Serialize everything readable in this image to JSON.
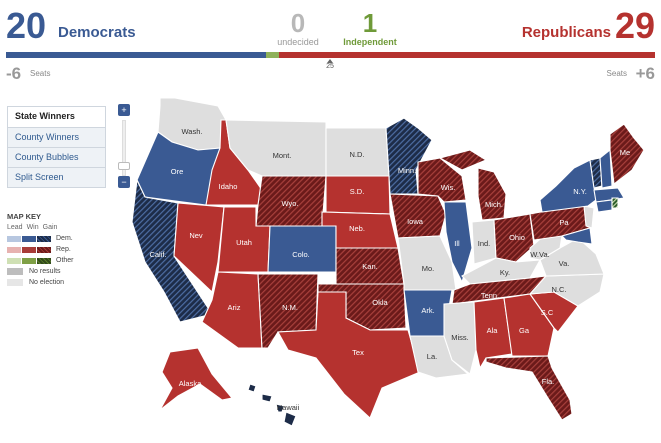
{
  "summary": {
    "democrats": {
      "count": "20",
      "label": "Democrats",
      "change": "-6",
      "seats_label": "Seats",
      "color": "#3a5a93"
    },
    "undecided": {
      "count": "0",
      "label": "undecided",
      "color": "#b8b8b8"
    },
    "independent": {
      "count": "1",
      "label": "Independent",
      "color": "#6f9a39"
    },
    "republicans": {
      "count": "29",
      "label": "Republicans",
      "change": "+6",
      "seats_label": "Seats",
      "color": "#b5322f"
    },
    "majority_marker": "25",
    "bar_fractions": {
      "democrats": 0.4,
      "independent": 0.02,
      "republicans": 0.58
    }
  },
  "views": {
    "items": [
      {
        "label": "State Winners",
        "active": true
      },
      {
        "label": "County Winners",
        "active": false
      },
      {
        "label": "County Bubbles",
        "active": false
      },
      {
        "label": "Split Screen",
        "active": false
      }
    ]
  },
  "zoom": {
    "in_icon": "zoom-in-icon",
    "out_icon": "zoom-out-icon",
    "level": 0.15
  },
  "map_key": {
    "title": "MAP KEY",
    "columns": [
      "Lead",
      "Win",
      "Gain"
    ],
    "rows": [
      {
        "label": "Dem.",
        "colors": [
          "#b7c7e0",
          "#3a5a93",
          "hatch-dem"
        ]
      },
      {
        "label": "Rep.",
        "colors": [
          "#e7b2b0",
          "#a83c38",
          "hatch-rep"
        ]
      },
      {
        "label": "Other",
        "colors": [
          "#cfe0b4",
          "#7fa046",
          "hatch-oth"
        ]
      }
    ],
    "no_results": {
      "label": "No results",
      "color": "#bdbdbd"
    },
    "no_election": {
      "label": "No election",
      "color": "#e6e6e6"
    }
  },
  "colors": {
    "dem_win": "#3a5a93",
    "dem_gain": "#1d2c48",
    "rep_win": "#b5322f",
    "rep_gain": "#6b1a1a",
    "other_gain": "#2e5e2e",
    "no_election": "#dedede"
  },
  "states": {
    "wash": "Wash.",
    "ore": "Ore",
    "calif": "Calif.",
    "idaho": "Idaho",
    "nev": "Nev",
    "mont": "Mont.",
    "wyo": "Wyo.",
    "utah": "Utah",
    "ariz": "Ariz",
    "colo": "Colo.",
    "nm": "N.M.",
    "nd": "N.D.",
    "sd": "S.D.",
    "neb": "Neb.",
    "kan": "Kan.",
    "okla": "Okla",
    "tex": "Tex",
    "minn": "Minn.",
    "iowa": "Iowa",
    "mo": "Mo.",
    "ark": "Ark.",
    "la": "La.",
    "wis": "Wis.",
    "ill": "Ill",
    "mich": "Mich.",
    "ind": "Ind.",
    "ohio": "Ohio",
    "ky": "Ky.",
    "tenn": "Tenn.",
    "miss": "Miss.",
    "ala": "Ala",
    "ga": "Ga",
    "fla": "Fla.",
    "sc": "S.C",
    "nc": "N.C.",
    "va": "Va.",
    "wva": "W.Va.",
    "pa": "Pa",
    "ny": "N.Y.",
    "me": "Me",
    "alaska": "Alaska",
    "hawaii": "Hawaii"
  }
}
